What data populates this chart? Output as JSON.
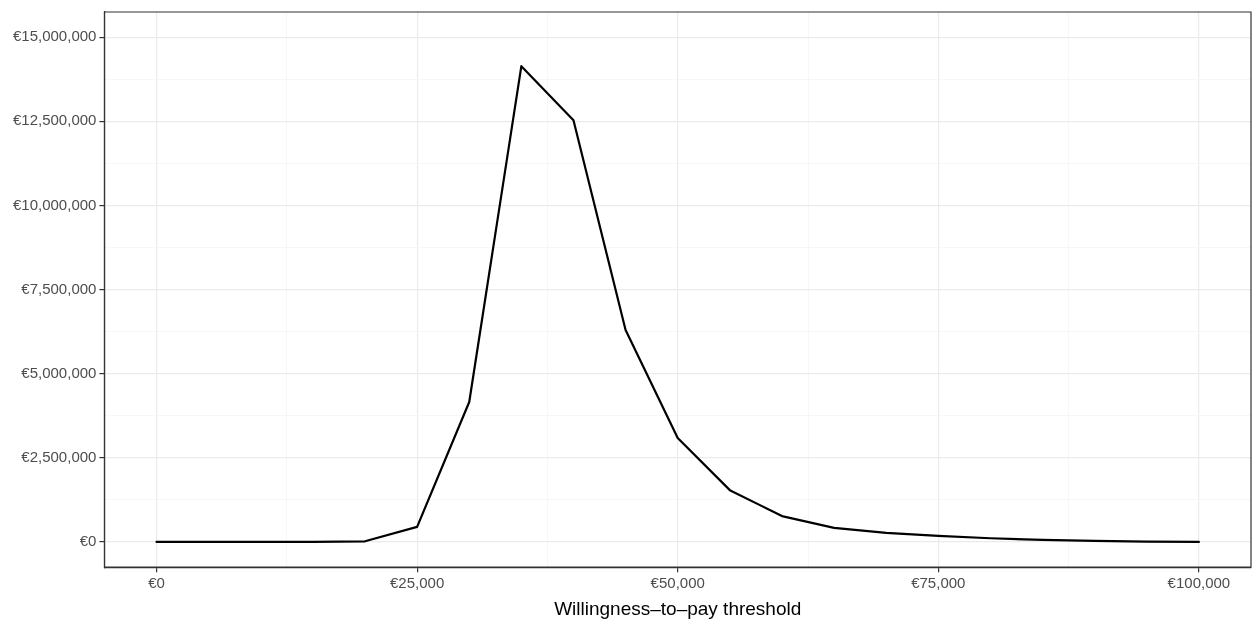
{
  "chart_data": {
    "type": "line",
    "xlabel": "Willingness–to–pay threshold",
    "x": [
      0,
      5000,
      10000,
      15000,
      20000,
      25000,
      30000,
      35000,
      40000,
      45000,
      50000,
      55000,
      60000,
      65000,
      70000,
      75000,
      80000,
      85000,
      90000,
      95000,
      100000
    ],
    "series": [
      {
        "color": "#000000",
        "values": [
          0,
          0,
          0,
          0,
          20000,
          450000,
          4160000,
          14140000,
          12530000,
          6300000,
          3090000,
          1540000,
          770000,
          420000,
          270000,
          180000,
          110000,
          60000,
          30000,
          10000,
          0
        ]
      }
    ],
    "xlim": [
      -5000,
      105000
    ],
    "xticks": [
      {
        "value": 0,
        "label": "€0"
      },
      {
        "value": 12500,
        "label": null
      },
      {
        "value": 25000,
        "label": "€25,000"
      },
      {
        "value": 37500,
        "label": null
      },
      {
        "value": 50000,
        "label": "€50,000"
      },
      {
        "value": 62500,
        "label": null
      },
      {
        "value": 75000,
        "label": "€75,000"
      },
      {
        "value": 87500,
        "label": null
      },
      {
        "value": 100000,
        "label": "€100,000"
      }
    ],
    "ylim": [
      -750000,
      15750000
    ],
    "yticks": [
      {
        "value": 0,
        "label": "€0"
      },
      {
        "value": 1250000,
        "label": null
      },
      {
        "value": 2500000,
        "label": "€2,500,000"
      },
      {
        "value": 3750000,
        "label": null
      },
      {
        "value": 5000000,
        "label": "€5,000,000"
      },
      {
        "value": 6250000,
        "label": null
      },
      {
        "value": 7500000,
        "label": "€7,500,000"
      },
      {
        "value": 8750000,
        "label": null
      },
      {
        "value": 10000000,
        "label": "€10,000,000"
      },
      {
        "value": 11250000,
        "label": null
      },
      {
        "value": 12500000,
        "label": "€12,500,000"
      },
      {
        "value": 13750000,
        "label": null
      },
      {
        "value": 15000000,
        "label": "€15,000,000"
      }
    ],
    "grid": true,
    "marker": "none",
    "line_style": "solid",
    "legend": false
  }
}
